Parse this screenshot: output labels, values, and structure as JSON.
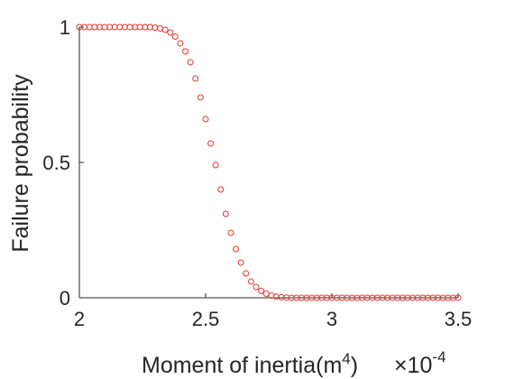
{
  "chart_data": {
    "type": "scatter",
    "title": "",
    "xlabel": "Moment of inertia(m",
    "xlabel_superscript": "4",
    "xlabel_close": ")",
    "x_multiplier": "×10",
    "x_multiplier_exponent": "-4",
    "ylabel": "Failure probability",
    "xlim": [
      2,
      3.5
    ],
    "ylim": [
      0,
      1
    ],
    "xticks": [
      "2",
      "2.5",
      "3",
      "3.5"
    ],
    "yticks": [
      "0",
      "0.5",
      "1"
    ],
    "grid": false,
    "marker": "circle",
    "marker_color": "#e8362d",
    "series": [
      {
        "x": [
          2.0,
          2.02,
          2.04,
          2.06,
          2.08,
          2.1,
          2.12,
          2.14,
          2.16,
          2.18,
          2.2,
          2.22,
          2.24,
          2.26,
          2.28,
          2.3,
          2.32,
          2.34,
          2.36,
          2.38,
          2.4,
          2.42,
          2.44,
          2.46,
          2.48,
          2.5,
          2.52,
          2.54,
          2.56,
          2.58,
          2.6,
          2.62,
          2.64,
          2.66,
          2.68,
          2.7,
          2.72,
          2.74,
          2.76,
          2.78,
          2.8,
          2.82,
          2.84,
          2.86,
          2.88,
          2.9,
          2.92,
          2.94,
          2.96,
          2.98,
          3.0,
          3.02,
          3.04,
          3.06,
          3.08,
          3.1,
          3.12,
          3.14,
          3.16,
          3.18,
          3.2,
          3.22,
          3.24,
          3.26,
          3.28,
          3.3,
          3.32,
          3.34,
          3.36,
          3.38,
          3.4,
          3.42,
          3.44,
          3.46,
          3.48,
          3.5
        ],
        "y": [
          1.0,
          1.0,
          1.0,
          1.0,
          1.0,
          1.0,
          1.0,
          1.0,
          1.0,
          1.0,
          1.0,
          1.0,
          1.0,
          1.0,
          1.0,
          0.998,
          0.995,
          0.99,
          0.98,
          0.965,
          0.94,
          0.91,
          0.87,
          0.81,
          0.74,
          0.66,
          0.57,
          0.49,
          0.4,
          0.31,
          0.24,
          0.18,
          0.13,
          0.09,
          0.06,
          0.04,
          0.025,
          0.015,
          0.008,
          0.004,
          0.002,
          0.001,
          0.0,
          0.0,
          0.0,
          0.0,
          0.0,
          0.0,
          0.0,
          0.0,
          0.0,
          0.0,
          0.0,
          0.0,
          0.0,
          0.0,
          0.0,
          0.0,
          0.0,
          0.0,
          0.0,
          0.0,
          0.0,
          0.0,
          0.0,
          0.0,
          0.0,
          0.0,
          0.0,
          0.0,
          0.0,
          0.0,
          0.0,
          0.0,
          0.0,
          0.0
        ]
      }
    ]
  }
}
